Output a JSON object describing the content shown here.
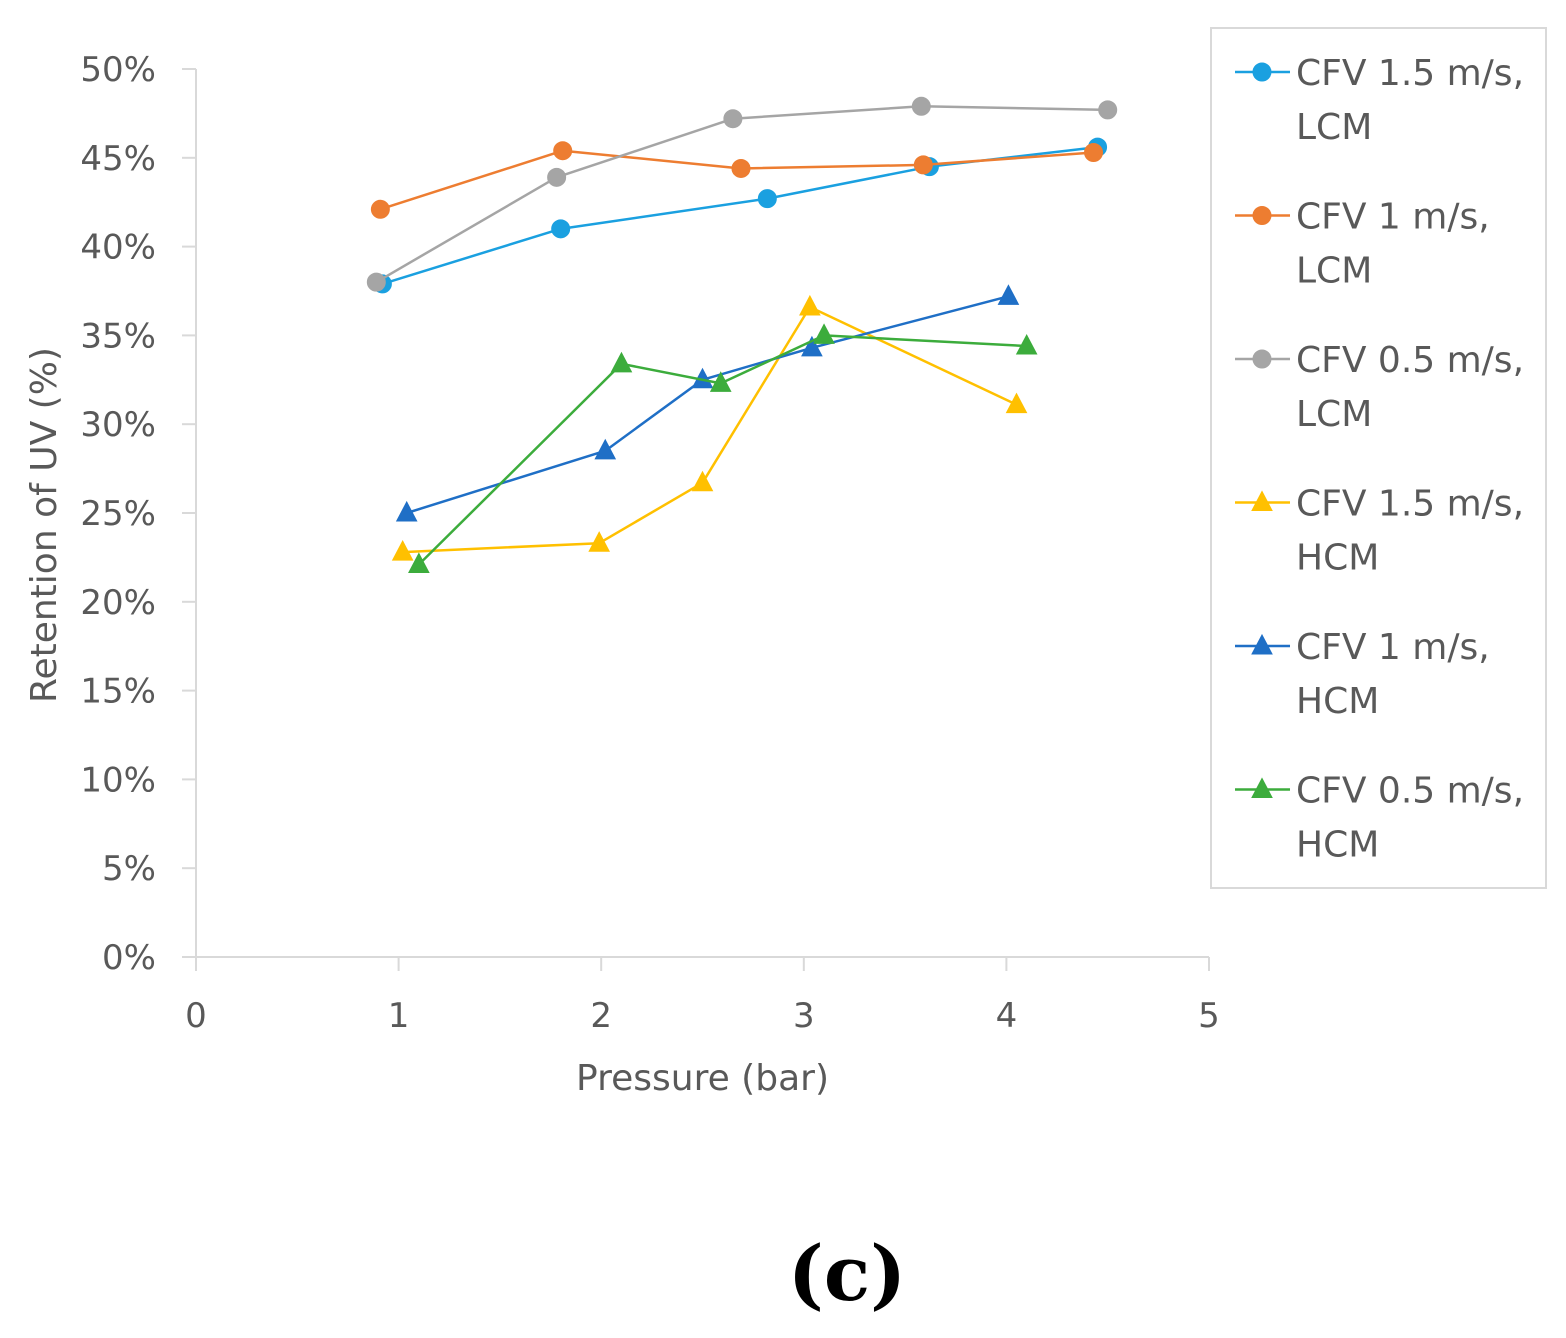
{
  "chart_data": {
    "type": "line",
    "xlabel": "Pressure  (bar)",
    "ylabel": "Retention of UV  (%)",
    "xlim": [
      0,
      5
    ],
    "ylim": [
      0,
      50
    ],
    "x_ticks": [
      "0",
      "1",
      "2",
      "3",
      "4",
      "5"
    ],
    "y_ticks": [
      "0%",
      "5%",
      "10%",
      "15%",
      "20%",
      "25%",
      "30%",
      "35%",
      "40%",
      "45%",
      "50%"
    ],
    "grid": false,
    "legend_position": "right",
    "caption": "(c)",
    "series": [
      {
        "name_line1": "CFV 1.5 m/s,",
        "name_line2": "LCM",
        "color": "#1aa0e0",
        "marker": "circle",
        "x": [
          0.92,
          1.8,
          2.82,
          3.62,
          4.45
        ],
        "y": [
          37.9,
          41.0,
          42.7,
          44.5,
          45.6
        ]
      },
      {
        "name_line1": "CFV 1 m/s,",
        "name_line2": "LCM",
        "color": "#ed7d31",
        "marker": "circle",
        "x": [
          0.91,
          1.81,
          2.69,
          3.59,
          4.43
        ],
        "y": [
          42.1,
          45.4,
          44.4,
          44.6,
          45.3
        ]
      },
      {
        "name_line1": "CFV 0.5 m/s,",
        "name_line2": "LCM",
        "color": "#a5a5a5",
        "marker": "circle",
        "x": [
          0.89,
          1.78,
          2.65,
          3.58,
          4.5
        ],
        "y": [
          38.0,
          43.9,
          47.2,
          47.9,
          47.7
        ]
      },
      {
        "name_line1": "CFV 1.5 m/s,",
        "name_line2": "HCM",
        "color": "#ffc000",
        "marker": "triangle",
        "x": [
          1.02,
          1.99,
          2.5,
          3.03,
          4.05
        ],
        "y": [
          22.8,
          23.3,
          26.7,
          36.6,
          31.1
        ]
      },
      {
        "name_line1": "CFV 1 m/s,",
        "name_line2": "HCM",
        "color": "#1f6fc6",
        "marker": "triangle",
        "x": [
          1.04,
          2.02,
          2.5,
          3.04,
          4.01
        ],
        "y": [
          25.0,
          28.5,
          32.5,
          34.3,
          37.2
        ]
      },
      {
        "name_line1": "CFV 0.5 m/s,",
        "name_line2": "HCM",
        "color": "#3cac3c",
        "marker": "triangle",
        "x": [
          1.1,
          2.1,
          2.59,
          3.1,
          4.1
        ],
        "y": [
          22.1,
          33.4,
          32.3,
          35.0,
          34.4
        ]
      }
    ]
  }
}
